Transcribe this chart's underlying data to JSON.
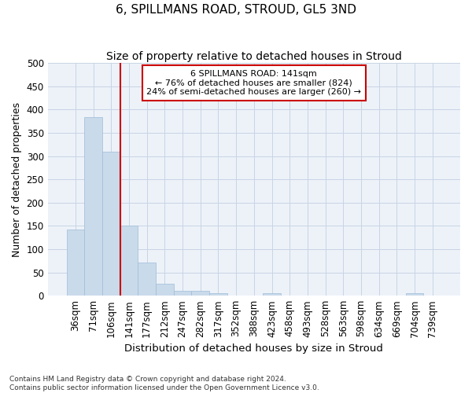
{
  "title": "6, SPILLMANS ROAD, STROUD, GL5 3ND",
  "subtitle": "Size of property relative to detached houses in Stroud",
  "xlabel": "Distribution of detached houses by size in Stroud",
  "ylabel": "Number of detached properties",
  "categories": [
    "36sqm",
    "71sqm",
    "106sqm",
    "141sqm",
    "177sqm",
    "212sqm",
    "247sqm",
    "282sqm",
    "317sqm",
    "352sqm",
    "388sqm",
    "423sqm",
    "458sqm",
    "493sqm",
    "528sqm",
    "563sqm",
    "598sqm",
    "634sqm",
    "669sqm",
    "704sqm",
    "739sqm"
  ],
  "values": [
    143,
    384,
    309,
    150,
    71,
    25,
    10,
    10,
    5,
    0,
    0,
    5,
    0,
    0,
    0,
    0,
    0,
    0,
    0,
    5,
    0
  ],
  "bar_color": "#c9daea",
  "bar_edgecolor": "#a0bcd8",
  "vline_x_index": 3,
  "vline_color": "#cc0000",
  "annotation_text": "6 SPILLMANS ROAD: 141sqm\n← 76% of detached houses are smaller (824)\n24% of semi-detached houses are larger (260) →",
  "annotation_box_edgecolor": "#cc0000",
  "ylim": [
    0,
    500
  ],
  "yticks": [
    0,
    50,
    100,
    150,
    200,
    250,
    300,
    350,
    400,
    450,
    500
  ],
  "grid_color": "#c8d4e4",
  "background_color": "#edf2f9",
  "footer": "Contains HM Land Registry data © Crown copyright and database right 2024.\nContains public sector information licensed under the Open Government Licence v3.0.",
  "title_fontsize": 11,
  "subtitle_fontsize": 10,
  "xlabel_fontsize": 9.5,
  "ylabel_fontsize": 9,
  "tick_fontsize": 8.5,
  "annotation_fontsize": 8,
  "footer_fontsize": 6.5
}
